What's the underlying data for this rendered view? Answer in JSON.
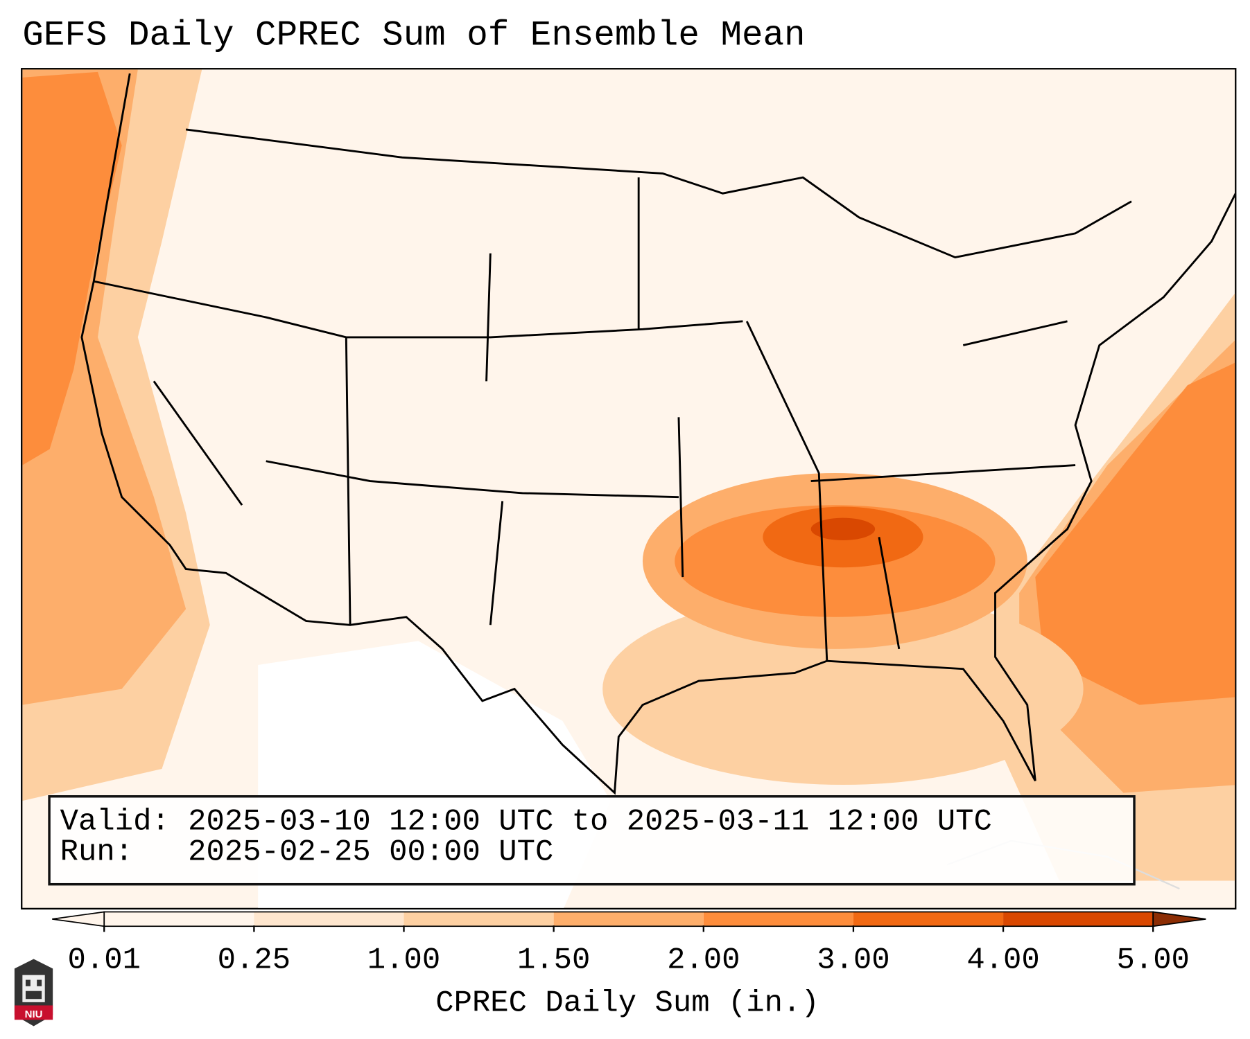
{
  "title": "GEFS Daily CPREC Sum of Ensemble Mean",
  "infobox": {
    "valid_line": "Valid: 2025-03-10 12:00 UTC to 2025-03-11 12:00 UTC",
    "run_line": "Run:   2025-02-25 00:00 UTC"
  },
  "colorbar": {
    "label": "CPREC Daily Sum (in.)",
    "ticks": [
      "0.01",
      "0.25",
      "1.00",
      "1.50",
      "2.00",
      "3.00",
      "4.00",
      "5.00"
    ],
    "colors": [
      "#fff5eb",
      "#fee6ce",
      "#fdd0a2",
      "#fdae6b",
      "#fd8d3c",
      "#f16913",
      "#d94801",
      "#8c2d04"
    ],
    "extend": "both"
  },
  "logo": {
    "text": "NIU"
  }
}
